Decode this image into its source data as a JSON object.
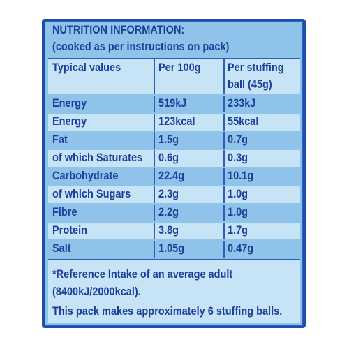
{
  "title": "NUTRITION INFORMATION:",
  "subtitle": "(cooked as per instructions on pack)",
  "table": {
    "headers": [
      "Typical values",
      "Per 100g",
      "Per stuffing",
      "ball (45g)"
    ],
    "rows": [
      {
        "label": "Energy",
        "per100": "519kJ",
        "perBall": "233kJ"
      },
      {
        "label": "Energy",
        "per100": "123kcal",
        "perBall": "55kcal"
      },
      {
        "label": "Fat",
        "per100": "1.5g",
        "perBall": "0.7g"
      },
      {
        "label": "of which Saturates",
        "per100": "0.6g",
        "perBall": "0.3g"
      },
      {
        "label": "Carbohydrate",
        "per100": "22.4g",
        "perBall": "10.1g"
      },
      {
        "label": "of which Sugars",
        "per100": "2.3g",
        "perBall": "1.0g"
      },
      {
        "label": "Fibre",
        "per100": "2.2g",
        "perBall": "1.0g"
      },
      {
        "label": "Protein",
        "per100": "3.8g",
        "perBall": "1.7g"
      },
      {
        "label": "Salt",
        "per100": "1.05g",
        "perBall": "0.47g"
      }
    ]
  },
  "footer": {
    "line1": "*Reference Intake of an average adult",
    "line2": "(8400kJ/2000kcal).",
    "line3": "This pack makes approximately 6 stuffing balls."
  },
  "colors": {
    "frame": "#1e4fae",
    "panel": "#8fc3ea",
    "row_light": "#c7e4f7",
    "text": "#1b3f9a"
  }
}
